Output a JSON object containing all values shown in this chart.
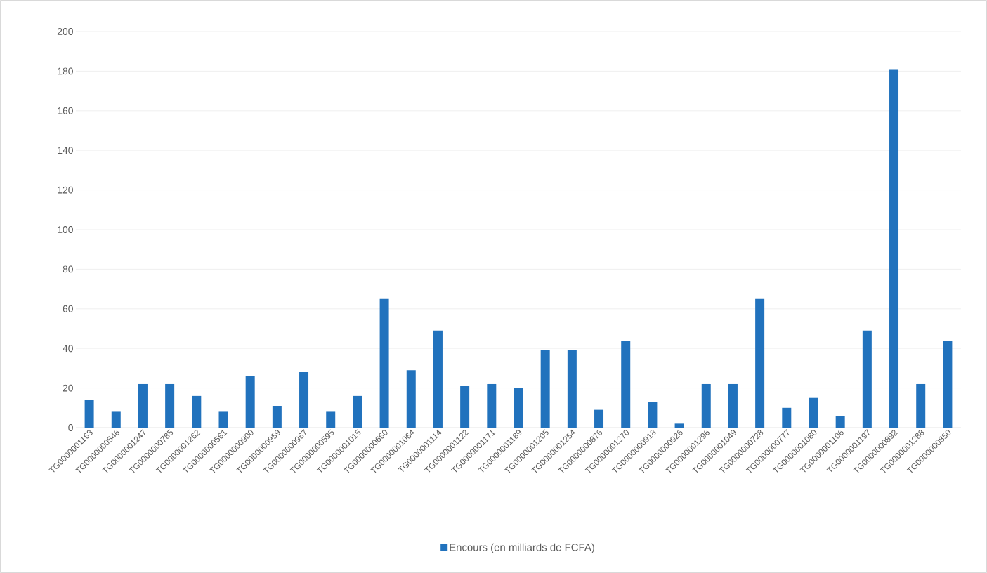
{
  "chart_data": {
    "type": "bar",
    "categories": [
      "TG0000001163",
      "TG0000000546",
      "TG0000001247",
      "TG0000000785",
      "TG0000001262",
      "TG0000000561",
      "TG0000000900",
      "TG0000000959",
      "TG0000000967",
      "TG0000000595",
      "TG0000001015",
      "TG0000000660",
      "TG0000001064",
      "TG0000001114",
      "TG0000001122",
      "TG0000001171",
      "TG0000001189",
      "TG0000001205",
      "TG0000001254",
      "TG0000000876",
      "TG0000001270",
      "TG0000000918",
      "TG0000000926",
      "TG0000001296",
      "TG0000001049",
      "TG0000000728",
      "TG0000000777",
      "TG0000001080",
      "TG0000001106",
      "TG0000001197",
      "TG0000000892",
      "TG0000001288",
      "TG0000000850"
    ],
    "series": [
      {
        "name": "Encours (en milliards de FCFA)",
        "color": "#2172bd",
        "values": [
          14,
          8,
          22,
          22,
          16,
          8,
          26,
          11,
          28,
          8,
          16,
          65,
          29,
          49,
          21,
          22,
          20,
          39,
          39,
          9,
          44,
          13,
          2,
          22,
          22,
          65,
          10,
          15,
          6,
          49,
          181,
          22,
          44
        ]
      }
    ],
    "ylim": [
      0,
      200
    ],
    "yticks": [
      0,
      20,
      40,
      60,
      80,
      100,
      120,
      140,
      160,
      180,
      200
    ],
    "grid": "y",
    "legend": "bottom"
  }
}
